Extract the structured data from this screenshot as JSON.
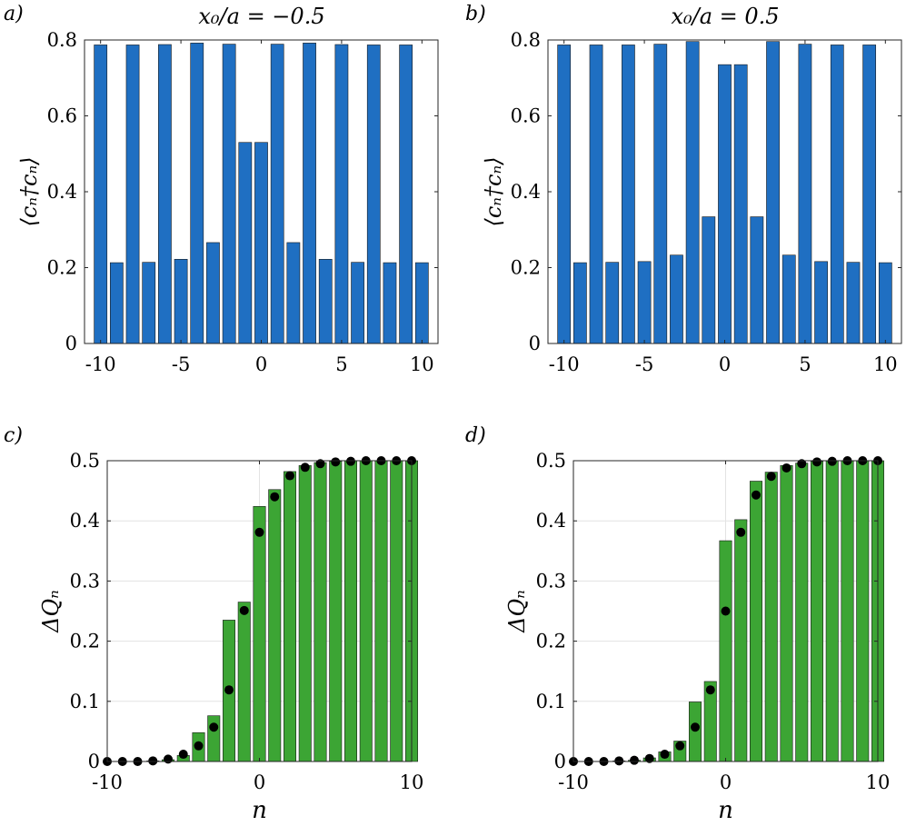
{
  "chart_data": [
    {
      "type": "bar",
      "panel": "a)",
      "title": "x₀/a = −0.5",
      "xlabel": "",
      "ylabel": "⟨cₙ†cₙ⟩",
      "x": [
        -10,
        -9,
        -8,
        -7,
        -6,
        -5,
        -4,
        -3,
        -2,
        -1,
        0,
        1,
        2,
        3,
        4,
        5,
        6,
        7,
        8,
        9,
        10
      ],
      "values": [
        0.787,
        0.213,
        0.787,
        0.214,
        0.788,
        0.222,
        0.792,
        0.266,
        0.789,
        0.53,
        0.53,
        0.789,
        0.266,
        0.792,
        0.222,
        0.788,
        0.214,
        0.787,
        0.213,
        0.787,
        0.213
      ],
      "xlim": [
        -11,
        11
      ],
      "ylim": [
        0,
        0.8
      ],
      "xticks": [
        -10,
        -5,
        0,
        5,
        10
      ],
      "xtick_labels": [
        "-10",
        "-5",
        "0",
        "5",
        "10"
      ],
      "yticks": [
        0,
        0.2,
        0.4,
        0.6,
        0.8
      ],
      "ytick_labels": [
        "0",
        "0.2",
        "0.4",
        "0.6",
        "0.8"
      ],
      "grid": false,
      "bar_color": "#1f6fc2"
    },
    {
      "type": "bar",
      "panel": "b)",
      "title": "x₀/a = 0.5",
      "xlabel": "",
      "ylabel": "⟨cₙ†cₙ⟩",
      "x": [
        -10,
        -9,
        -8,
        -7,
        -6,
        -5,
        -4,
        -3,
        -2,
        -1,
        0,
        1,
        2,
        3,
        4,
        5,
        6,
        7,
        8,
        9,
        10
      ],
      "values": [
        0.787,
        0.213,
        0.787,
        0.214,
        0.787,
        0.216,
        0.789,
        0.233,
        0.796,
        0.334,
        0.735,
        0.735,
        0.334,
        0.796,
        0.233,
        0.789,
        0.216,
        0.787,
        0.214,
        0.787,
        0.213
      ],
      "xlim": [
        -11,
        11
      ],
      "ylim": [
        0,
        0.8
      ],
      "xticks": [
        -10,
        -5,
        0,
        5,
        10
      ],
      "xtick_labels": [
        "-10",
        "-5",
        "0",
        "5",
        "10"
      ],
      "yticks": [
        0,
        0.2,
        0.4,
        0.6,
        0.8
      ],
      "ytick_labels": [
        "0",
        "0.2",
        "0.4",
        "0.6",
        "0.8"
      ],
      "grid": false,
      "bar_color": "#1f6fc2"
    },
    {
      "type": "bar",
      "panel": "c)",
      "title": "",
      "xlabel": "n",
      "ylabel": "ΔQₙ",
      "x": [
        -10,
        -9,
        -8,
        -7,
        -6,
        -5,
        -4,
        -3,
        -2,
        -1,
        0,
        1,
        2,
        3,
        4,
        5,
        6,
        7,
        8,
        9,
        10
      ],
      "values": [
        0.0,
        0.0,
        0.0,
        0.001,
        0.003,
        0.01,
        0.048,
        0.076,
        0.235,
        0.265,
        0.424,
        0.452,
        0.482,
        0.492,
        0.497,
        0.499,
        0.5,
        0.5,
        0.5,
        0.5,
        0.5
      ],
      "points": [
        0.0,
        0.0,
        0.0,
        0.001,
        0.004,
        0.012,
        0.026,
        0.057,
        0.119,
        0.251,
        0.381,
        0.44,
        0.475,
        0.489,
        0.495,
        0.498,
        0.499,
        0.5,
        0.5,
        0.5,
        0.5
      ],
      "xlim": [
        -10,
        10
      ],
      "ylim": [
        0,
        0.5
      ],
      "xticks": [
        -10,
        0,
        10
      ],
      "xtick_labels": [
        "-10",
        "0",
        "10"
      ],
      "yticks": [
        0,
        0.1,
        0.2,
        0.3,
        0.4,
        0.5
      ],
      "ytick_labels": [
        "0",
        "0.1",
        "0.2",
        "0.3",
        "0.4",
        "0.5"
      ],
      "grid": true,
      "bar_color": "#3ca534",
      "point_color": "#000000"
    },
    {
      "type": "bar",
      "panel": "d)",
      "title": "",
      "xlabel": "n",
      "ylabel": "ΔQₙ",
      "x": [
        -10,
        -9,
        -8,
        -7,
        -6,
        -5,
        -4,
        -3,
        -2,
        -1,
        0,
        1,
        2,
        3,
        4,
        5,
        6,
        7,
        8,
        9,
        10
      ],
      "values": [
        0.0,
        0.0,
        0.0,
        0.001,
        0.002,
        0.006,
        0.016,
        0.034,
        0.099,
        0.133,
        0.367,
        0.402,
        0.466,
        0.481,
        0.492,
        0.496,
        0.499,
        0.5,
        0.5,
        0.5,
        0.5
      ],
      "points": [
        0.0,
        0.0,
        0.0,
        0.001,
        0.002,
        0.005,
        0.012,
        0.026,
        0.057,
        0.119,
        0.25,
        0.381,
        0.443,
        0.474,
        0.488,
        0.495,
        0.498,
        0.499,
        0.5,
        0.5,
        0.5
      ],
      "xlim": [
        -10,
        10
      ],
      "ylim": [
        0,
        0.5
      ],
      "xticks": [
        -10,
        0,
        10
      ],
      "xtick_labels": [
        "-10",
        "0",
        "10"
      ],
      "yticks": [
        0,
        0.1,
        0.2,
        0.3,
        0.4,
        0.5
      ],
      "ytick_labels": [
        "0",
        "0.1",
        "0.2",
        "0.3",
        "0.4",
        "0.5"
      ],
      "grid": true,
      "bar_color": "#3ca534",
      "point_color": "#000000"
    }
  ]
}
